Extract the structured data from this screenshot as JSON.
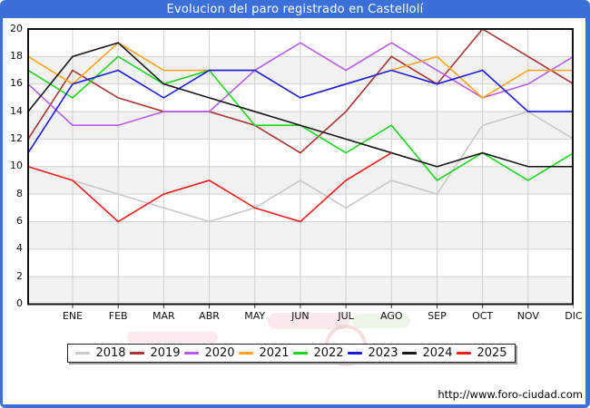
{
  "title_bar": {
    "title": "Evolucion del paro registrado en Castellolí"
  },
  "footer": {
    "url": "http://www.foro-ciudad.com"
  },
  "legend": {
    "position": "bottom"
  },
  "chart_data": {
    "type": "line",
    "title": "Evolucion del paro registrado en Castellolí",
    "x_labels": [
      "ENE",
      "FEB",
      "MAR",
      "ABR",
      "MAY",
      "JUN",
      "JUL",
      "AGO",
      "SEP",
      "OCT",
      "NOV",
      "DIC"
    ],
    "y_ticks": [
      0,
      2,
      4,
      6,
      8,
      10,
      12,
      14,
      16,
      18,
      20
    ],
    "ylim": [
      0,
      20
    ],
    "grid": true,
    "band_fill": "#f2f2f2",
    "grid_color": "#d0d0d0",
    "series": [
      {
        "name": "2018",
        "color": "#c9c9c9",
        "start_value": null,
        "values": [
          9,
          8,
          7,
          6,
          7,
          9,
          7,
          9,
          8,
          13,
          14,
          12
        ]
      },
      {
        "name": "2019",
        "color": "#a83434",
        "start_value": 12,
        "values": [
          17,
          15,
          14,
          14,
          13,
          11,
          14,
          18,
          16,
          20,
          18,
          16
        ]
      },
      {
        "name": "2020",
        "color": "#b75ce8",
        "start_value": 16,
        "values": [
          13,
          13,
          14,
          14,
          17,
          19,
          17,
          19,
          17,
          15,
          16,
          18
        ]
      },
      {
        "name": "2021",
        "color": "#ffa41e",
        "start_value": 18,
        "values": [
          16,
          19,
          17,
          17,
          17,
          15,
          16,
          17,
          18,
          15,
          17,
          17
        ]
      },
      {
        "name": "2022",
        "color": "#1ed41e",
        "start_value": 17,
        "values": [
          15,
          18,
          16,
          17,
          13,
          13,
          11,
          13,
          9,
          11,
          9,
          11
        ]
      },
      {
        "name": "2023",
        "color": "#1a1ae0",
        "start_value": 11,
        "values": [
          16,
          17,
          15,
          17,
          17,
          15,
          16,
          17,
          16,
          17,
          14,
          14
        ]
      },
      {
        "name": "2024",
        "color": "#161616",
        "start_value": 14,
        "values": [
          18,
          19,
          16,
          15,
          14,
          13,
          12,
          11,
          10,
          11,
          10,
          10
        ]
      },
      {
        "name": "2025",
        "color": "#ee1c1c",
        "start_value": 10,
        "values": [
          9,
          6,
          8,
          9,
          7,
          6,
          9,
          11,
          null,
          null,
          null,
          null
        ]
      }
    ]
  }
}
